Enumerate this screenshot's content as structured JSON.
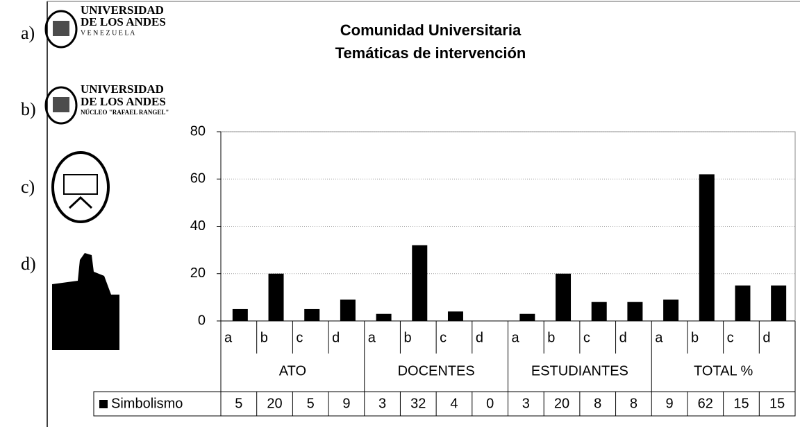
{
  "figure_labels": [
    "a)",
    "b)",
    "c)",
    "d)"
  ],
  "logos": [
    {
      "lines": [
        "UNIVERSIDAD",
        "DE LOS ANDES",
        "V E N E Z U E L A"
      ]
    },
    {
      "lines": [
        "UNIVERSIDAD",
        "DE LOS ANDES",
        "NÚCLEO \"RAFAEL RANGEL\""
      ]
    }
  ],
  "chart_data": {
    "type": "bar",
    "title": [
      "Comunidad Universitaria",
      "Temáticas de intervención"
    ],
    "categories": [
      "a",
      "b",
      "c",
      "d",
      "a",
      "b",
      "c",
      "d",
      "a",
      "b",
      "c",
      "d",
      "a",
      "b",
      "c",
      "d"
    ],
    "category_groups": [
      "ATO",
      "DOCENTES",
      "ESTUDIANTES",
      "TOTAL %"
    ],
    "series": [
      {
        "name": "Simbolismo",
        "color": "#000000",
        "values": [
          5,
          20,
          5,
          9,
          3,
          32,
          4,
          0,
          3,
          20,
          8,
          8,
          9,
          62,
          15,
          15
        ]
      }
    ],
    "ylim": [
      0,
      80
    ],
    "yticks": [
      0,
      20,
      40,
      60,
      80
    ],
    "grid": true,
    "data_table": true
  }
}
